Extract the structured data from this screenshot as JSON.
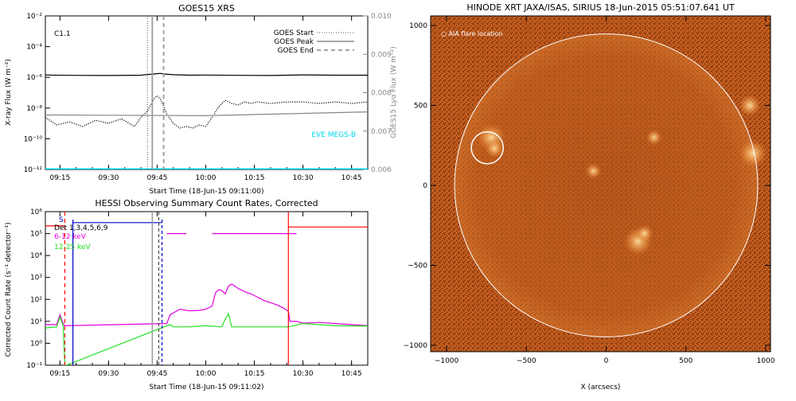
{
  "chart_data": [
    {
      "type": "line",
      "title": "GOES15 XRS",
      "xlabel": "Start Time (18-Jun-15 09:11:00)",
      "ylabel": "X-ray Flux (W m⁻²)",
      "ylabel_right": "GOES15 Lyα Flux (W m⁻²)",
      "x_ticks": [
        "09:15",
        "09:30",
        "09:45",
        "10:00",
        "10:15",
        "10:30",
        "10:45"
      ],
      "x_tick_minutes": [
        15,
        30,
        45,
        60,
        75,
        90,
        105
      ],
      "xlim_minutes": [
        10.5,
        110
      ],
      "y_scale": "log",
      "ylim_exp": [
        -12,
        -2
      ],
      "y_ticks": [
        "10⁻²",
        "10⁻⁴",
        "10⁻⁶",
        "10⁻⁸",
        "10⁻¹⁰",
        "10⁻¹²"
      ],
      "y_tick_exp": [
        -2,
        -4,
        -6,
        -8,
        -10,
        -12
      ],
      "y2_ticks": [
        "0.010",
        "0.009",
        "0.008",
        "0.007",
        "0.006"
      ],
      "y2lim": [
        0.006,
        0.01
      ],
      "class_label": "C1.1",
      "annotation": "EVE MEGS-B",
      "legend_position": "top-right",
      "legend": [
        {
          "label": "GOES Start",
          "style": "dotted"
        },
        {
          "label": "GOES Peak",
          "style": "solid"
        },
        {
          "label": "GOES End",
          "style": "dashed"
        }
      ],
      "event_lines_minutes": {
        "start": 42,
        "peak": 43.5,
        "end": 47
      },
      "series": [
        {
          "name": "",
          "color": "#000000",
          "style": "solid",
          "x": [
            10.5,
            20,
            30,
            40,
            42,
            44,
            45,
            46,
            47,
            50,
            55,
            60,
            70,
            80,
            90,
            100,
            110
          ],
          "y_exp": [
            -5.85,
            -5.87,
            -5.88,
            -5.86,
            -5.82,
            -5.78,
            -5.76,
            -5.74,
            -5.78,
            -5.83,
            -5.86,
            -5.85,
            -5.87,
            -5.88,
            -5.84,
            -5.86,
            -5.86
          ]
        },
        {
          "name": "",
          "color": "#000000",
          "style": "dotted",
          "x": [
            10.5,
            14,
            18,
            22,
            26,
            30,
            34,
            38,
            40,
            42,
            44,
            45,
            46,
            48,
            50,
            52,
            54,
            56,
            58,
            60,
            62,
            64,
            66,
            68,
            70,
            72,
            74,
            76,
            80,
            85,
            90,
            95,
            100,
            105,
            110
          ],
          "y_exp": [
            -8.6,
            -9.1,
            -8.9,
            -9.2,
            -8.8,
            -9.0,
            -8.7,
            -9.2,
            -8.6,
            -8.2,
            -7.4,
            -7.2,
            -7.4,
            -8.4,
            -9.0,
            -9.3,
            -9.2,
            -9.3,
            -9.1,
            -9.2,
            -8.6,
            -7.9,
            -7.5,
            -7.7,
            -7.8,
            -7.6,
            -7.7,
            -7.6,
            -7.7,
            -7.6,
            -7.6,
            -7.7,
            -7.6,
            -7.7,
            -7.6
          ]
        },
        {
          "name": "",
          "color": "#888888",
          "style": "solid",
          "x": [
            10.5,
            60,
            110
          ],
          "y_exp": [
            -8.45,
            -8.5,
            -8.25
          ]
        },
        {
          "name": "EVE MEGS-B",
          "color": "#00d8e8",
          "style": "solid",
          "x": [
            10.5,
            110
          ],
          "y_exp": [
            -12,
            -12
          ]
        }
      ]
    },
    {
      "type": "line",
      "title": "HESSI Observing Summary Count Rates, Corrected",
      "xlabel": "Start Time (18-Jun-15 09:11:02)",
      "ylabel": "Corrected Count Rate (s⁻¹ detector⁻¹)",
      "x_ticks": [
        "09:15",
        "09:30",
        "09:45",
        "10:00",
        "10:15",
        "10:30",
        "10:45"
      ],
      "x_tick_minutes": [
        15,
        30,
        45,
        60,
        75,
        90,
        105
      ],
      "xlim_minutes": [
        10.5,
        110
      ],
      "y_scale": "log",
      "ylim_exp": [
        -1,
        6
      ],
      "y_ticks": [
        "10⁶",
        "10⁵",
        "10⁴",
        "10³",
        "10²",
        "10¹",
        "10⁰",
        "10⁻¹"
      ],
      "y_tick_exp": [
        6,
        5,
        4,
        3,
        2,
        1,
        0,
        -1
      ],
      "legend_position": "top-left",
      "legend": [
        {
          "label": "Det 1,3,4,5,6,9",
          "color": "#000000"
        },
        {
          "label": "6-12 keV",
          "color": "#e000e0"
        },
        {
          "label": "12-25 keV",
          "color": "#20e020"
        }
      ],
      "s_marker": "S",
      "vlines_red_minutes": [
        16.5,
        85.5
      ],
      "vlines_gray_minutes": [
        43.5
      ],
      "vlines_dashed_minutes": [
        45.5
      ],
      "series": [
        {
          "name": "6-12 keV",
          "color": "#e000e0",
          "x": [
            10.5,
            14,
            15,
            16,
            16.5,
            48,
            49,
            52,
            55,
            58,
            60,
            62,
            63,
            64,
            65,
            66,
            67,
            68,
            70,
            72,
            74,
            76,
            78,
            80,
            82,
            84,
            85.5,
            86,
            88,
            90,
            95,
            100,
            105,
            110
          ],
          "y_exp": [
            0.85,
            0.85,
            1.3,
            0.9,
            0.8,
            0.9,
            1.3,
            1.55,
            1.48,
            1.5,
            1.55,
            1.7,
            2.3,
            2.45,
            2.4,
            2.25,
            2.6,
            2.7,
            2.5,
            2.35,
            2.25,
            2.1,
            1.95,
            1.85,
            1.75,
            1.6,
            1.45,
            1.0,
            1.0,
            0.92,
            0.95,
            0.9,
            0.85,
            0.8
          ]
        },
        {
          "name": "6-12 keV",
          "color": "#e000e0",
          "x": [
            48,
            54
          ],
          "y_exp": [
            5.0,
            5.0
          ]
        },
        {
          "name": "6-12 keV",
          "color": "#e000e0",
          "x": [
            62,
            88
          ],
          "y_exp": [
            5.0,
            5.0
          ]
        },
        {
          "name": "12-25 keV",
          "color": "#20e020",
          "x": [
            10.5,
            14,
            15,
            16,
            16.5,
            17,
            48,
            49,
            50,
            55,
            60,
            65,
            66,
            67,
            68,
            70,
            80,
            85.5,
            90,
            100,
            110
          ],
          "y_exp": [
            0.7,
            0.75,
            1.2,
            0.8,
            -1,
            -1,
            0.8,
            0.85,
            0.75,
            0.75,
            0.8,
            0.75,
            1.1,
            1.35,
            0.75,
            0.75,
            0.75,
            0.75,
            0.9,
            0.8,
            0.78
          ]
        },
        {
          "name": "Det 1,3,4,5,6,9",
          "color": "#0000cc",
          "x": [
            19,
            46.5
          ],
          "y_exp": [
            5.5,
            5.5
          ]
        },
        {
          "name": "",
          "color": "#ff0000",
          "x": [
            10.5,
            16.5
          ],
          "y_exp": [
            5.35,
            5.35
          ]
        },
        {
          "name": "",
          "color": "#ff0000",
          "x": [
            85.5,
            110
          ],
          "y_exp": [
            5.3,
            5.3
          ]
        }
      ]
    }
  ],
  "xrt": {
    "title": "HINODE XRT JAXA/ISAS, SIRIUS 18-Jun-2015 05:51:07.641 UT",
    "legend": "○ AIA flare location",
    "xlabel": "X (arcsecs)",
    "ylabel": "Y (arcsecs)",
    "x_ticks": [
      "−1000",
      "−500",
      "0",
      "500",
      "1000"
    ],
    "x_tick_values": [
      -1000,
      -500,
      0,
      500,
      1000
    ],
    "y_ticks": [
      "1000",
      "500",
      "0",
      "−500",
      "−1000"
    ],
    "y_tick_values": [
      1000,
      500,
      0,
      -500,
      -1000
    ],
    "xlim": [
      -1100,
      1030
    ],
    "ylim": [
      -1040,
      1060
    ],
    "solar_radius_arcsec": 950,
    "flare_location_arcsec": [
      -745,
      235
    ],
    "flare_circle_radius_arcsec": 100,
    "colors": {
      "background": "#1a0a05",
      "disk": "#c8601c",
      "bright": "#ffcf80",
      "circle": "#ffffff"
    }
  }
}
